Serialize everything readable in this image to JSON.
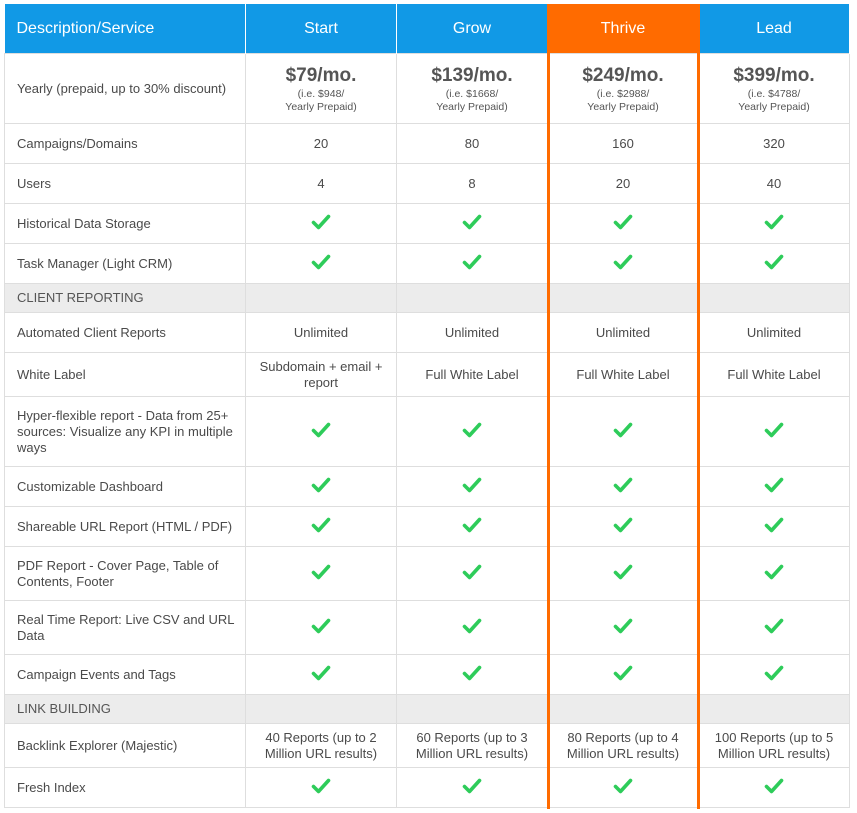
{
  "header": {
    "description": "Description/Service",
    "plans": [
      "Start",
      "Grow",
      "Thrive",
      "Lead"
    ]
  },
  "pricing": {
    "label": "Yearly (prepaid, up to 30% discount)",
    "prices": [
      {
        "main": "$79/mo.",
        "sub1": "(i.e. $948/",
        "sub2": "Yearly Prepaid)"
      },
      {
        "main": "$139/mo.",
        "sub1": "(i.e. $1668/",
        "sub2": "Yearly Prepaid)"
      },
      {
        "main": "$249/mo.",
        "sub1": "(i.e. $2988/",
        "sub2": "Yearly Prepaid)"
      },
      {
        "main": "$399/mo.",
        "sub1": "(i.e. $4788/",
        "sub2": "Yearly Prepaid)"
      }
    ]
  },
  "rows_top": [
    {
      "label": "Campaigns/Domains",
      "values": [
        "20",
        "80",
        "160",
        "320"
      ]
    },
    {
      "label": "Users",
      "values": [
        "4",
        "8",
        "20",
        "40"
      ]
    },
    {
      "label": "Historical Data Storage",
      "check": true
    },
    {
      "label": "Task Manager (Light CRM)",
      "check": true
    }
  ],
  "section_client": "CLIENT REPORTING",
  "rows_client": [
    {
      "label": "Automated Client Reports",
      "values": [
        "Unlimited",
        "Unlimited",
        "Unlimited",
        "Unlimited"
      ]
    },
    {
      "label": "White Label",
      "values": [
        "Subdomain + email + report",
        "Full White Label",
        "Full White Label",
        "Full White Label"
      ]
    },
    {
      "label": "Hyper-flexible report - Data from 25+ sources: Visualize any KPI in multiple ways",
      "check": true
    },
    {
      "label": "Customizable Dashboard",
      "check": true
    },
    {
      "label": "Shareable URL Report (HTML / PDF)",
      "check": true
    },
    {
      "label": "PDF Report - Cover Page, Table of Contents, Footer",
      "check": true
    },
    {
      "label": "Real Time Report: Live CSV and URL Data",
      "check": true
    },
    {
      "label": "Campaign Events and Tags",
      "check": true
    }
  ],
  "section_link": "LINK BUILDING",
  "rows_link": [
    {
      "label": "Backlink Explorer (Majestic)",
      "values": [
        "40 Reports (up to 2 Million URL results)",
        "60 Reports (up to 3 Million URL results)",
        "80 Reports (up to 4 Million URL results)",
        "100 Reports (up to 5 Million URL results)"
      ]
    },
    {
      "label": "Fresh Index",
      "check": true
    }
  ],
  "colors": {
    "header_blue": "#1199e6",
    "highlight_orange": "#ff6b00",
    "check_green": "#2ecc5a",
    "section_gray": "#ececec"
  },
  "icons": {
    "check": "check-icon"
  }
}
